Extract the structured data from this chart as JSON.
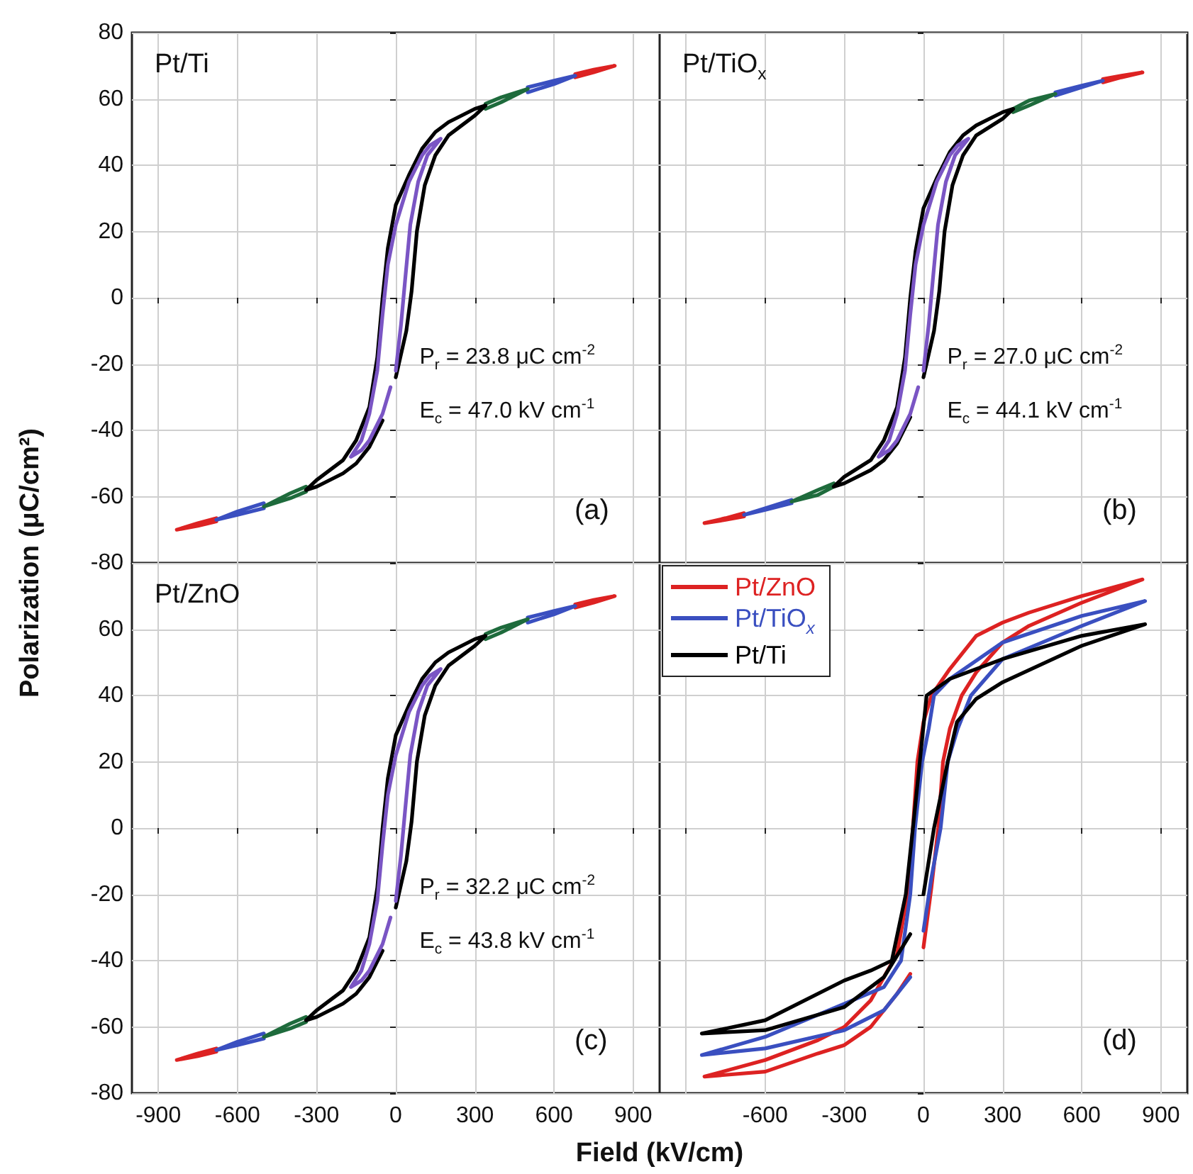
{
  "chart_data": [
    {
      "type": "line",
      "title": "Pt/Ti",
      "ylabel": "Polarization (μC/cm²)",
      "annotations": [
        "P$_{r}$ = 23.8 μC cm$^{-2}$",
        "E$_{c}$ = 47.0 kV cm$^{-1}$",
        "(a)"
      ],
      "xlim": [
        -1000,
        1000
      ],
      "xticks": [
        -900,
        -600,
        -300,
        0,
        300,
        600,
        900
      ],
      "ylim": [
        -80,
        80
      ],
      "yticks": [
        -80,
        -60,
        -40,
        -20,
        0,
        20,
        40,
        60,
        80
      ],
      "tick_labels": "y",
      "grid": true,
      "marker": "none",
      "series": [
        {
          "color": "#dd2222",
          "x": [
            680,
            750,
            830,
            750,
            680,
            0,
            -680,
            -750,
            -830,
            -750,
            -680
          ],
          "values": [
            66.5,
            68,
            70,
            68.8,
            67.5,
            null,
            -66.5,
            -68,
            -70,
            -68.8,
            -67.5
          ]
        },
        {
          "color": "#3a4fc0",
          "x": [
            500,
            600,
            680,
            600,
            500,
            0,
            -500,
            -600,
            -680,
            -600,
            -500
          ],
          "values": [
            62,
            64.5,
            67,
            65.5,
            63.5,
            null,
            -62,
            -64.5,
            -67,
            -65.5,
            -63.5
          ]
        },
        {
          "color": "#1e6b3c",
          "x": [
            340,
            400,
            500,
            400,
            340,
            0,
            -340,
            -400,
            -500,
            -400,
            -340
          ],
          "values": [
            57,
            59,
            63,
            60.5,
            58.5,
            null,
            -57,
            -59,
            -63,
            -60.5,
            -58.5
          ]
        },
        {
          "color": "#000000",
          "x": [
            0,
            40,
            60,
            80,
            110,
            150,
            200,
            300,
            340,
            300,
            200,
            150,
            100,
            50,
            0,
            -30,
            -50,
            -70,
            -100,
            -150,
            -200,
            -300,
            -340,
            -300,
            -200,
            -150,
            -100,
            -50
          ],
          "values": [
            -24,
            -10,
            2,
            20,
            34,
            43,
            49,
            55,
            58,
            57,
            53,
            50,
            45,
            37,
            28,
            15,
            0,
            -18,
            -33,
            -43,
            -49,
            -55,
            -58,
            -57,
            -53,
            -50,
            -45,
            -37
          ]
        },
        {
          "color": "#7a55c4",
          "x": [
            0,
            20,
            35,
            55,
            85,
            120,
            170,
            130,
            100,
            50,
            0,
            -30,
            -50,
            -70,
            -100,
            -130,
            -170,
            -130,
            -100,
            -50,
            -20
          ],
          "values": [
            -22,
            -8,
            5,
            22,
            35,
            43,
            48,
            46,
            43,
            35,
            22,
            10,
            -5,
            -22,
            -35,
            -43,
            -48,
            -46,
            -43,
            -35,
            -27
          ]
        }
      ]
    },
    {
      "type": "line",
      "title": "Pt/TiO$_{x}$",
      "annotations": [
        "P$_{r}$ = 27.0 μC cm$^{-2}$",
        "E$_{c}$ = 44.1 kV cm$^{-1}$",
        "(b)"
      ],
      "xlim": [
        -1000,
        1000
      ],
      "xticks": [
        -900,
        -600,
        -300,
        0,
        300,
        600,
        900
      ],
      "ylim": [
        -80,
        80
      ],
      "yticks": [
        -80,
        -60,
        -40,
        -20,
        0,
        20,
        40,
        60,
        80
      ],
      "tick_labels": false,
      "grid": true,
      "marker": "none",
      "series": [
        {
          "color": "#dd2222",
          "x": [
            680,
            750,
            830,
            750,
            680,
            0,
            -680,
            -750,
            -830,
            -750,
            -680
          ],
          "values": [
            65,
            66.5,
            68,
            67,
            66,
            null,
            -65,
            -66.5,
            -68,
            -67,
            -66
          ]
        },
        {
          "color": "#3a4fc0",
          "x": [
            500,
            600,
            680,
            600,
            500,
            0,
            -500,
            -600,
            -680,
            -600,
            -500
          ],
          "values": [
            61,
            63.5,
            65.5,
            64,
            62,
            null,
            -61,
            -63.5,
            -65.5,
            -64,
            -62
          ]
        },
        {
          "color": "#1e6b3c",
          "x": [
            340,
            400,
            500,
            400,
            340,
            0,
            -340,
            -400,
            -500,
            -400,
            -340
          ],
          "values": [
            56,
            58,
            61.5,
            59.5,
            57,
            null,
            -56,
            -58,
            -61.5,
            -59.5,
            -57
          ]
        },
        {
          "color": "#000000",
          "x": [
            0,
            40,
            60,
            80,
            110,
            150,
            200,
            300,
            340,
            300,
            200,
            150,
            100,
            50,
            0,
            -30,
            -50,
            -70,
            -100,
            -150,
            -200,
            -300,
            -340,
            -300,
            -200,
            -150,
            -100,
            -50
          ],
          "values": [
            -24,
            -10,
            2,
            20,
            34,
            43,
            49,
            54,
            57,
            56,
            52,
            49,
            44,
            36,
            27,
            14,
            0,
            -18,
            -33,
            -43,
            -49,
            -54,
            -57,
            -56,
            -52,
            -49,
            -44,
            -36
          ]
        },
        {
          "color": "#7a55c4",
          "x": [
            0,
            20,
            35,
            55,
            85,
            120,
            170,
            130,
            100,
            50,
            0,
            -30,
            -50,
            -70,
            -100,
            -130,
            -170,
            -130,
            -100,
            -50,
            -20
          ],
          "values": [
            -22,
            -8,
            5,
            22,
            35,
            43,
            48,
            46,
            43,
            35,
            22,
            10,
            -5,
            -22,
            -35,
            -43,
            -48,
            -46,
            -43,
            -35,
            -27
          ]
        }
      ]
    },
    {
      "type": "line",
      "title": "Pt/ZnO",
      "xlabel": "Field (kV/cm)",
      "annotations": [
        "P$_{r}$ = 32.2 μC cm$^{-2}$",
        "E$_{c}$ = 43.8 kV cm$^{-1}$",
        "(c)"
      ],
      "xlim": [
        -1000,
        1000
      ],
      "xticks": [
        -900,
        -600,
        -300,
        0,
        300,
        600,
        900
      ],
      "ylim": [
        -80,
        80
      ],
      "yticks": [
        -80,
        -60,
        -40,
        -20,
        0,
        20,
        40,
        60,
        {
          "value": 80,
          "label": null
        }
      ],
      "grid": true,
      "marker": "none",
      "series": [
        {
          "color": "#dd2222",
          "x": [
            680,
            750,
            830,
            750,
            680,
            0,
            -680,
            -750,
            -830,
            -750,
            -680
          ],
          "values": [
            66.5,
            68,
            70,
            68.8,
            67.5,
            null,
            -66.5,
            -68,
            -70,
            -68.8,
            -67.5
          ]
        },
        {
          "color": "#3a4fc0",
          "x": [
            500,
            600,
            680,
            600,
            500,
            0,
            -500,
            -600,
            -680,
            -600,
            -500
          ],
          "values": [
            62,
            64.5,
            67,
            65.5,
            63.5,
            null,
            -62,
            -64.5,
            -67,
            -65.5,
            -63.5
          ]
        },
        {
          "color": "#1e6b3c",
          "x": [
            340,
            400,
            500,
            400,
            340,
            0,
            -340,
            -400,
            -500,
            -400,
            -340
          ],
          "values": [
            57,
            59,
            63,
            60.5,
            58.5,
            null,
            -57,
            -59,
            -63,
            -60.5,
            -58.5
          ]
        },
        {
          "color": "#000000",
          "x": [
            0,
            40,
            60,
            80,
            110,
            150,
            200,
            300,
            340,
            300,
            200,
            150,
            100,
            50,
            0,
            -30,
            -50,
            -70,
            -100,
            -150,
            -200,
            -300,
            -340,
            -300,
            -200,
            -150,
            -100,
            -50
          ],
          "values": [
            -24,
            -10,
            2,
            20,
            34,
            43,
            49,
            55,
            58,
            57,
            53,
            50,
            45,
            37,
            28,
            15,
            0,
            -18,
            -33,
            -43,
            -49,
            -55,
            -58,
            -57,
            -53,
            -50,
            -45,
            -37
          ]
        },
        {
          "color": "#7a55c4",
          "x": [
            0,
            20,
            35,
            55,
            85,
            120,
            170,
            130,
            100,
            50,
            0,
            -30,
            -50,
            -70,
            -100,
            -130,
            -170,
            -130,
            -100,
            -50,
            -20
          ],
          "values": [
            -22,
            -8,
            5,
            22,
            35,
            43,
            48,
            46,
            43,
            35,
            22,
            10,
            -5,
            -22,
            -35,
            -43,
            -48,
            -46,
            -43,
            -35,
            -27
          ]
        }
      ]
    },
    {
      "type": "line",
      "annotations": [
        "(d)"
      ],
      "xlim": [
        -1000,
        1000
      ],
      "xticks": [
        {
          "value": -900,
          "label": null
        },
        -600,
        -300,
        0,
        300,
        600,
        900
      ],
      "ylim": [
        -80,
        80
      ],
      "yticks": [
        -80,
        -60,
        -40,
        -20,
        0,
        20,
        40,
        60,
        80
      ],
      "tick_labels": "x",
      "grid": true,
      "marker": "none",
      "legend": "top left",
      "series": [
        {
          "name": "Pt/ZnO",
          "color": "#dd2222",
          "x": [
            0,
            30,
            56,
            74,
            100,
            145,
            200,
            300,
            400,
            600,
            830,
            600,
            400,
            300,
            200,
            100,
            30,
            0,
            -23,
            -40,
            -60,
            -100,
            -200,
            -300,
            -400,
            -600,
            -830,
            -600,
            -400,
            -300,
            -200,
            -100,
            -50
          ],
          "values": [
            -36,
            -18,
            0,
            20,
            30,
            40,
            47,
            56,
            61,
            68,
            75,
            70,
            65,
            62,
            58,
            48,
            40,
            32,
            20,
            0,
            -20,
            -38,
            -52,
            -60,
            -64,
            -70,
            -75,
            -73.5,
            -68,
            -65.5,
            -60,
            -50,
            -44
          ]
        },
        {
          "name": "Pt/TiO$_{x}$",
          "color": "#3a4fc0",
          "x": [
            0,
            30,
            65,
            92,
            130,
            180,
            300,
            600,
            840,
            600,
            300,
            100,
            40,
            20,
            -5,
            -32,
            -50,
            -85,
            -150,
            -300,
            -600,
            -840,
            -600,
            -300,
            -150,
            -50
          ],
          "values": [
            -31,
            -15,
            0,
            20,
            30,
            40,
            51,
            61,
            68.5,
            64,
            56,
            45,
            40,
            30,
            20,
            0,
            -20,
            -40,
            -48,
            -53,
            -63,
            -68.5,
            -66.5,
            -61,
            -55,
            -45
          ]
        },
        {
          "name": "Pt/Ti",
          "color": "#000000",
          "x": [
            0,
            20,
            40,
            92,
            127,
            200,
            300,
            600,
            840,
            600,
            300,
            100,
            12,
            -14,
            -40,
            -67,
            -120,
            -200,
            -300,
            -600,
            -840,
            -600,
            -300,
            -150,
            -50
          ],
          "values": [
            -20,
            -10,
            0,
            20,
            32,
            39,
            44,
            55,
            61.5,
            58,
            51,
            45,
            40,
            20,
            0,
            -20,
            -40,
            -43,
            -46,
            -58,
            -62,
            -61,
            -54,
            -45,
            -32
          ]
        }
      ]
    }
  ]
}
